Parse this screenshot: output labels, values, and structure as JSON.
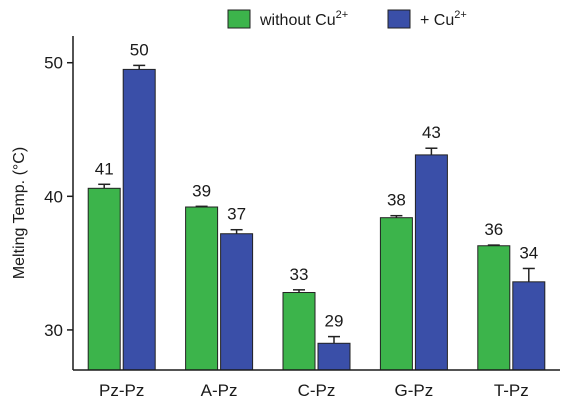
{
  "chart_data": {
    "type": "bar",
    "title": "",
    "xlabel": "",
    "ylabel": "Melting Temp. (°C)",
    "ylim": [
      27,
      52
    ],
    "yticks": [
      30,
      40,
      50
    ],
    "grid": false,
    "legend_position": "top",
    "categories": [
      "Pz-Pz",
      "A-Pz",
      "C-Pz",
      "G-Pz",
      "T-Pz"
    ],
    "series": [
      {
        "name": "without Cu2+",
        "legend_base": "without Cu",
        "legend_sup": "2+",
        "color": "#3cb44b",
        "values": [
          40.6,
          39.2,
          32.8,
          38.4,
          36.3
        ],
        "errors": [
          0.3,
          0.05,
          0.2,
          0.15,
          0.05
        ],
        "labels": [
          "41",
          "39",
          "33",
          "38",
          "36"
        ]
      },
      {
        "name": "+ Cu2+",
        "legend_base": "+ Cu",
        "legend_sup": "2+",
        "color": "#3a4fa8",
        "values": [
          49.5,
          37.2,
          29.0,
          43.1,
          33.6
        ],
        "errors": [
          0.3,
          0.3,
          0.5,
          0.5,
          1.0
        ],
        "labels": [
          "50",
          "37",
          "29",
          "43",
          "34"
        ]
      }
    ]
  }
}
